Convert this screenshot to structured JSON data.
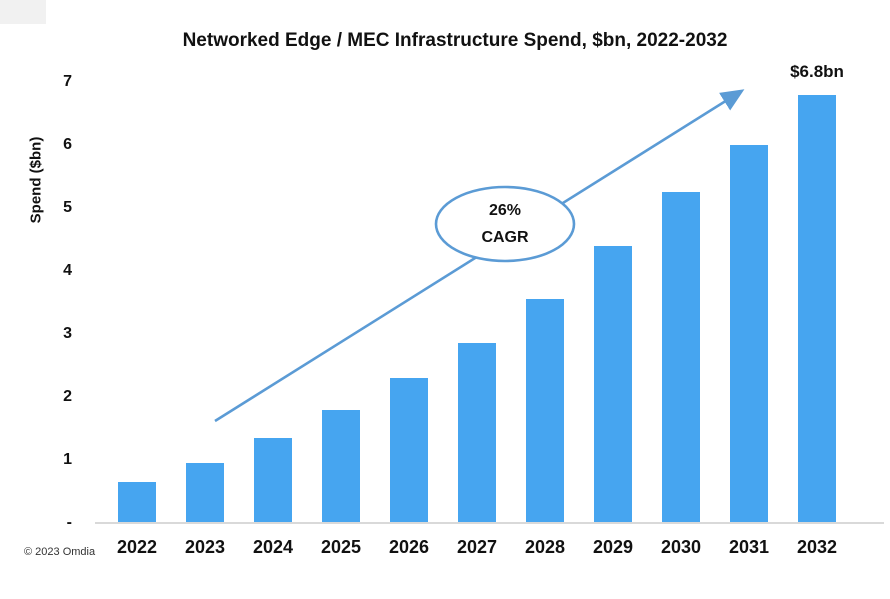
{
  "title": "Networked Edge / MEC Infrastructure Spend, $bn, 2022-2032",
  "peak_label": "$6.8bn",
  "annotation": {
    "line1": "26%",
    "line2": "CAGR"
  },
  "copyright": "© 2023 Omdia",
  "colors": {
    "bar": "#46a5f0",
    "arrow": "#5b9bd5",
    "axis_line": "#d9d9d9",
    "text": "#111111"
  },
  "chart_data": {
    "type": "bar",
    "title": "Networked Edge / MEC Infrastructure Spend, $bn, 2022-2032",
    "xlabel": "",
    "ylabel": "Spend ($bn)",
    "categories": [
      "2022",
      "2023",
      "2024",
      "2025",
      "2026",
      "2027",
      "2028",
      "2029",
      "2030",
      "2031",
      "2032"
    ],
    "values": [
      0.65,
      0.95,
      1.35,
      1.8,
      2.3,
      2.85,
      3.55,
      4.4,
      5.25,
      6.0,
      6.8
    ],
    "ylim": [
      0,
      7
    ],
    "ytick_labels": [
      "-",
      "1",
      "2",
      "3",
      "4",
      "5",
      "6",
      "7"
    ],
    "grid": false,
    "legend": null,
    "annotations": [
      "26% CAGR",
      "$6.8bn"
    ]
  }
}
